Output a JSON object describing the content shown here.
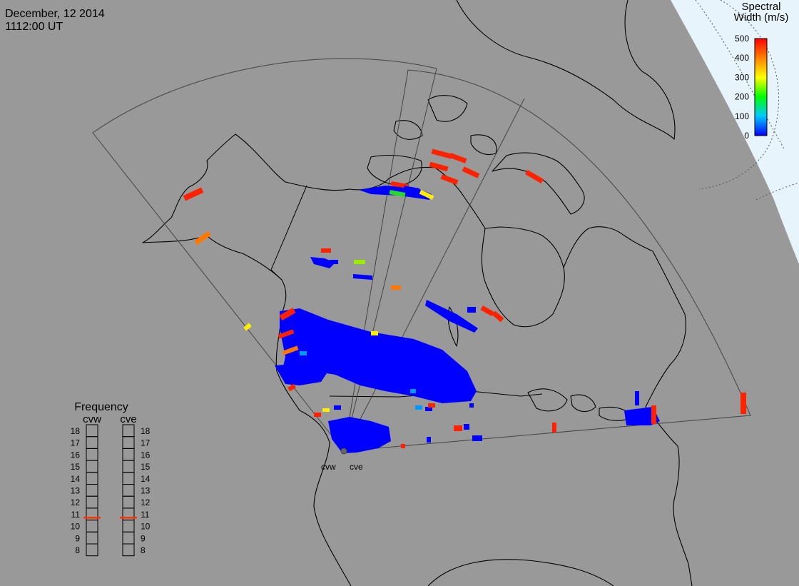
{
  "header": {
    "date": "December, 12 2014",
    "time": "1112:00 UT"
  },
  "colorbar": {
    "title_line1": "Spectral",
    "title_line2": "Width (m/s)",
    "ticks": [
      "500",
      "400",
      "300",
      "200",
      "100",
      "0"
    ],
    "stops": [
      "#0000ff",
      "#00c8ff",
      "#00ff00",
      "#ffff00",
      "#ff8000",
      "#ff0000"
    ]
  },
  "frequency_panel": {
    "title": "Frequency",
    "radars": [
      "cvw",
      "cve"
    ],
    "levels": [
      "18",
      "17",
      "16",
      "15",
      "14",
      "13",
      "12",
      "11",
      "10",
      "9",
      "8"
    ],
    "current_mhz": {
      "cvw": 10.7,
      "cve": 10.7
    },
    "marker_color": "#ff3300"
  },
  "site_labels": [
    "cvw",
    "cve"
  ],
  "colors": {
    "background": "#999999",
    "ocean_day": "#e8f4fc",
    "coast": "#000000",
    "fov": "#444444",
    "scatter_blue": "#0000ff"
  }
}
